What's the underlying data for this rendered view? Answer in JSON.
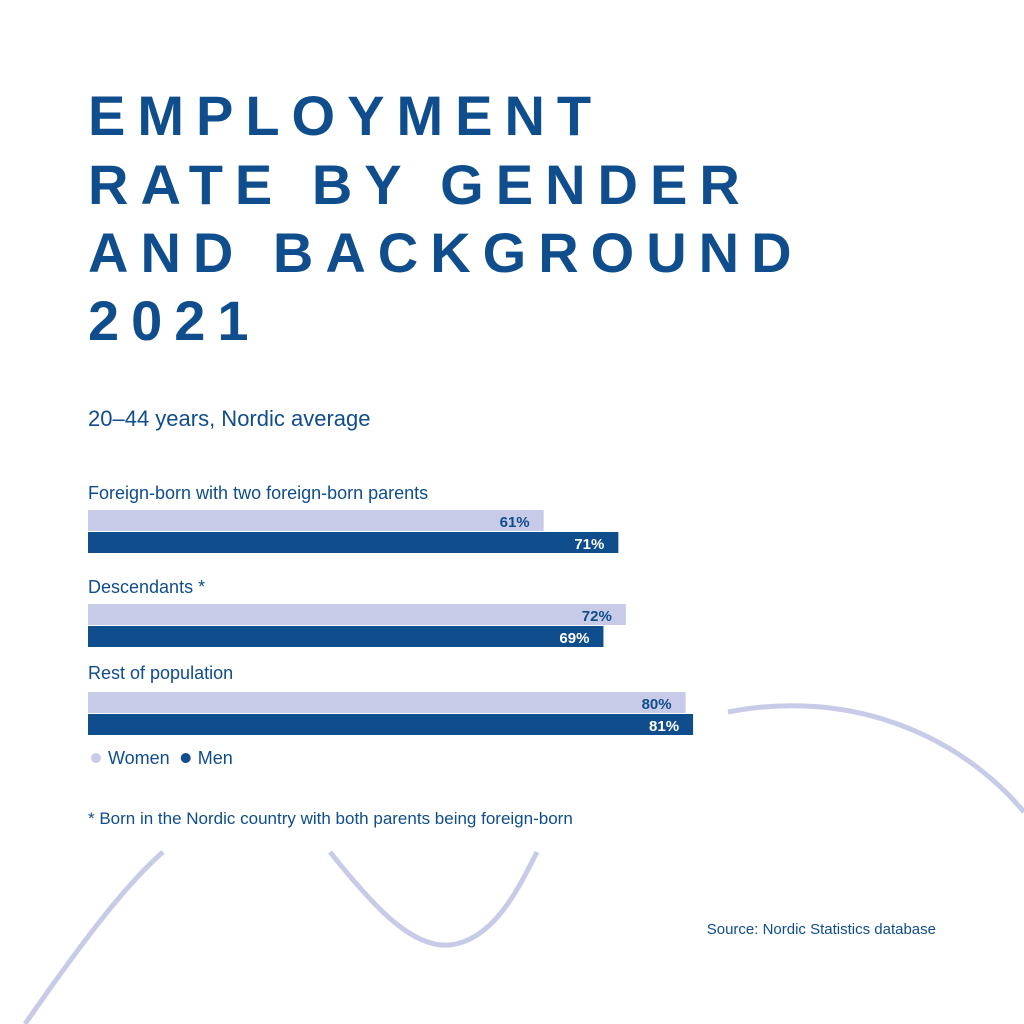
{
  "chart_data": {
    "type": "hbar",
    "title": [
      "EMPLOYMENT",
      "RATE BY GENDER",
      "AND BACKGROUND",
      "2021"
    ],
    "subtitle": "20–44 years, Nordic average",
    "categories": [
      "Foreign-born with two foreign-born parents",
      "Descendants *",
      "Rest of population"
    ],
    "series": [
      {
        "name": "Women",
        "color": "#c8cbe8",
        "values": [
          61,
          72,
          80
        ],
        "value_labels": [
          "61%",
          "72%",
          "80%"
        ]
      },
      {
        "name": "Men",
        "color": "#0f4d8c",
        "values": [
          71,
          69,
          81
        ],
        "value_labels": [
          "71%",
          "69%",
          "81%"
        ]
      }
    ],
    "footnote": "* Born in the Nordic country with both parents being foreign-born",
    "source": "Source: Nordic Statistics database"
  }
}
